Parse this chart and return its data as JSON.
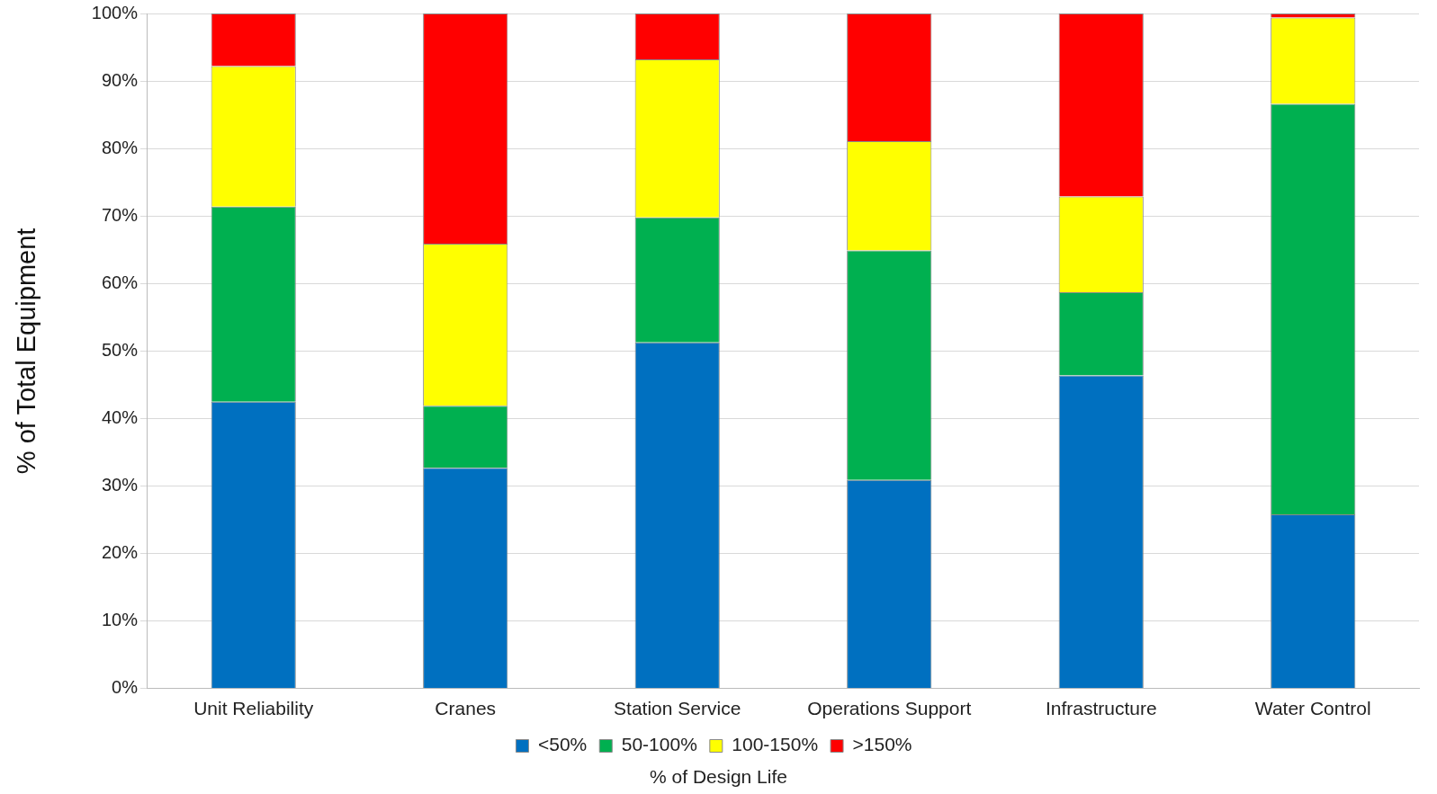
{
  "chart_data": {
    "type": "bar",
    "stacked": true,
    "xlabel": "% of Design Life",
    "ylabel": "% of Total Equipment",
    "categories": [
      "Unit Reliability",
      "Cranes",
      "Station Service",
      "Operations Support",
      "Infrastructure",
      "Water Control"
    ],
    "series": [
      {
        "name": "<50%",
        "color": "#0070c0",
        "values": [
          42.5,
          32.7,
          51.3,
          30.9,
          46.4,
          25.8
        ]
      },
      {
        "name": "50-100%",
        "color": "#00b050",
        "values": [
          28.9,
          9.2,
          18.5,
          34.0,
          12.3,
          60.8
        ]
      },
      {
        "name": "100-150%",
        "color": "#ffff00",
        "values": [
          20.8,
          24.0,
          23.4,
          16.2,
          14.2,
          12.8
        ]
      },
      {
        "name": ">150%",
        "color": "#ff0000",
        "values": [
          7.8,
          34.1,
          6.8,
          18.9,
          27.1,
          0.6
        ]
      }
    ],
    "ylim": [
      0,
      100
    ],
    "yticks": [
      {
        "value": 0,
        "label": "0%"
      },
      {
        "value": 10,
        "label": "10%"
      },
      {
        "value": 20,
        "label": "20%"
      },
      {
        "value": 30,
        "label": "30%"
      },
      {
        "value": 40,
        "label": "40%"
      },
      {
        "value": 50,
        "label": "50%"
      },
      {
        "value": 60,
        "label": "60%"
      },
      {
        "value": 70,
        "label": "70%"
      },
      {
        "value": 80,
        "label": "80%"
      },
      {
        "value": 90,
        "label": "90%"
      },
      {
        "value": 100,
        "label": "100%"
      }
    ],
    "grid": "y",
    "legend": "bottom"
  }
}
